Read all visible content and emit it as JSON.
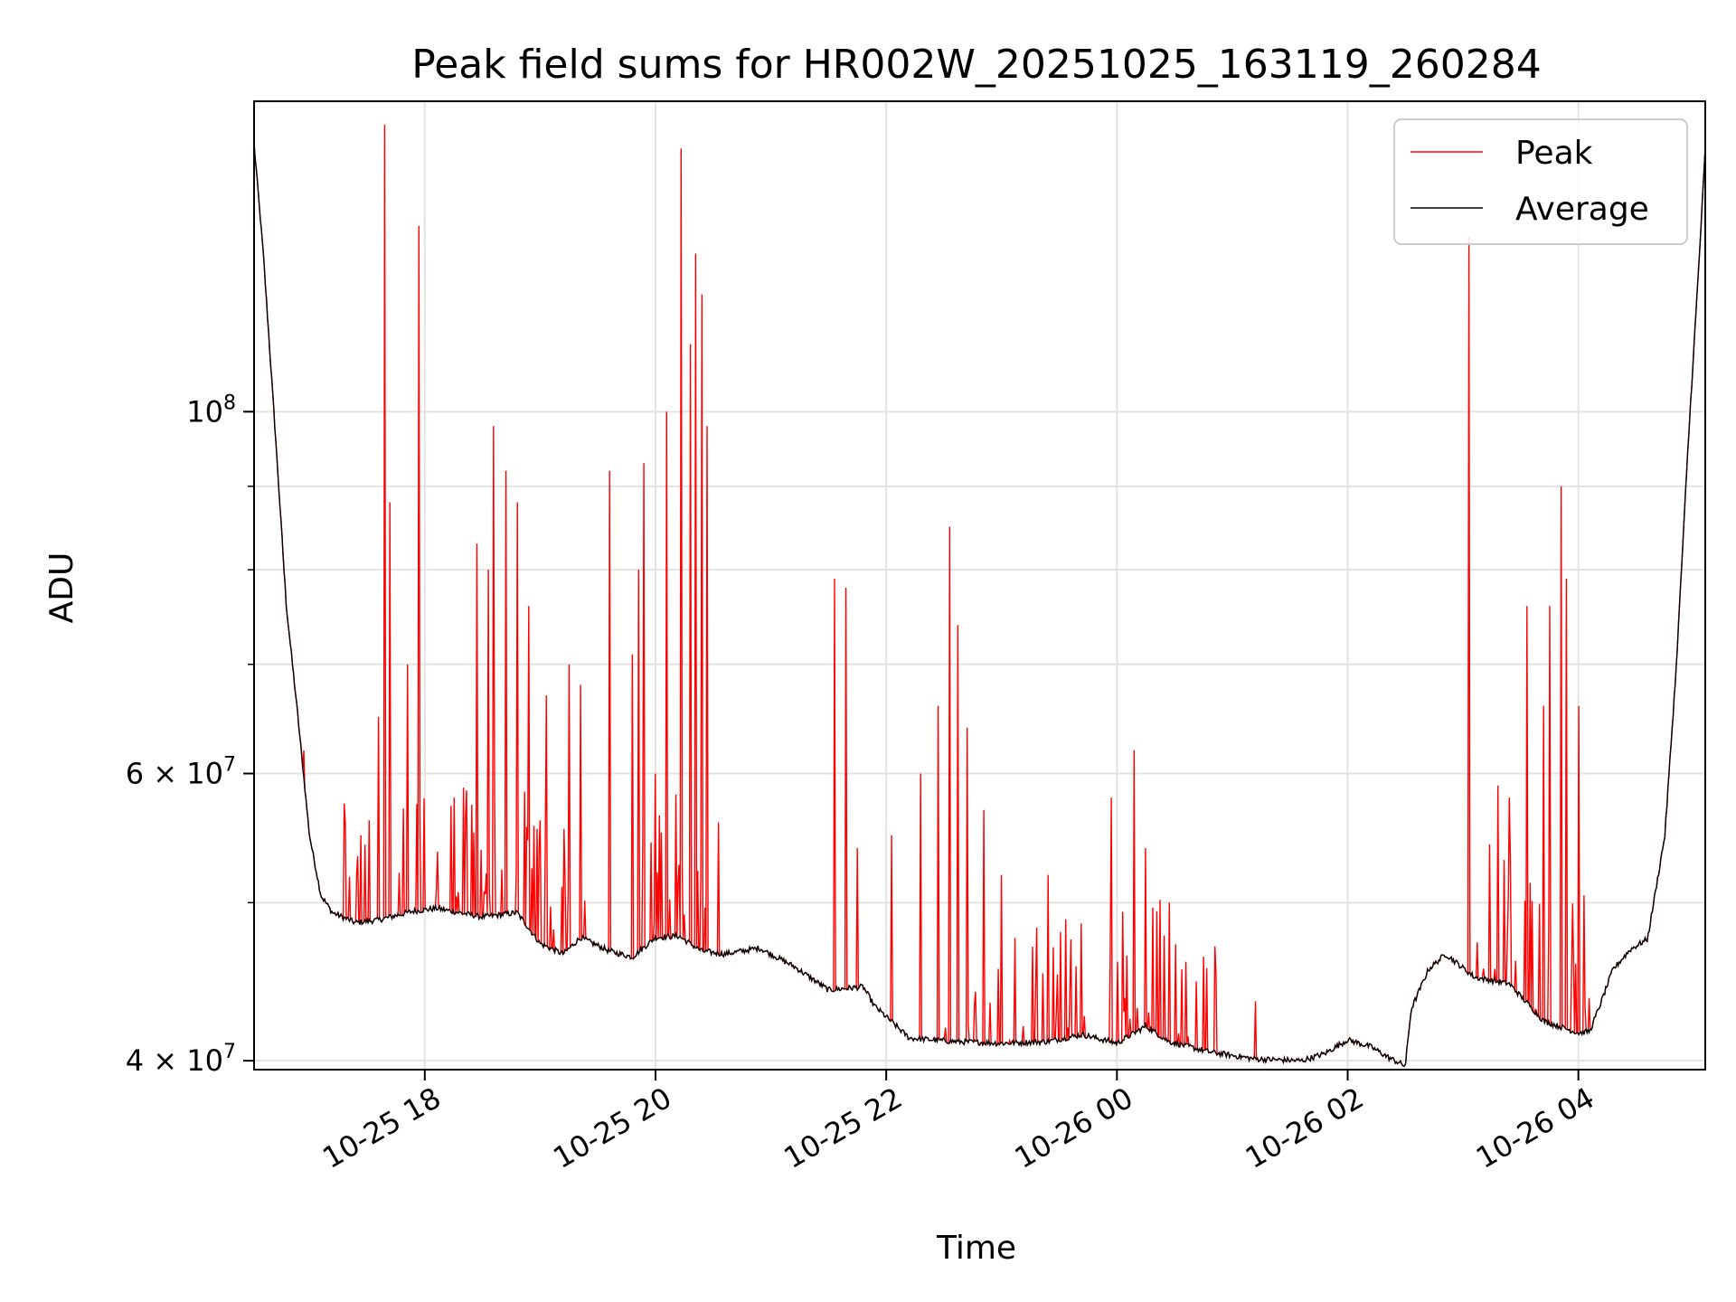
{
  "chart_data": {
    "type": "line",
    "title": "Peak field sums for HR002W_20251025_163119_260284",
    "xlabel": "Time",
    "ylabel": "ADU",
    "yscale": "log",
    "ylim": [
      39500000,
      155000000
    ],
    "xlim_hours": [
      16.52,
      5.1
    ],
    "grid": true,
    "legend_position": "top-right",
    "x_ticks": [
      {
        "hour": 18,
        "label": "10-25 18"
      },
      {
        "hour": 20,
        "label": "10-25 20"
      },
      {
        "hour": 22,
        "label": "10-25 22"
      },
      {
        "hour": 24,
        "label": "10-26 00"
      },
      {
        "hour": 26,
        "label": "10-26 02"
      },
      {
        "hour": 28,
        "label": "10-26 04"
      }
    ],
    "y_ticks": [
      {
        "value": 100000000,
        "base": "10",
        "exp": "8"
      },
      {
        "value": 60000000,
        "base": "6 × 10",
        "exp": "7"
      },
      {
        "value": 40000000,
        "base": "4 × 10",
        "exp": "7"
      }
    ],
    "y_minor_ticks": [
      50000000,
      70000000,
      80000000,
      90000000
    ],
    "series": [
      {
        "name": "Peak",
        "color": "#ff0000"
      },
      {
        "name": "Average",
        "color": "#000000"
      }
    ],
    "average_baseline": [
      [
        16.52,
        146000000
      ],
      [
        16.6,
        125000000
      ],
      [
        16.7,
        98000000
      ],
      [
        16.8,
        76000000
      ],
      [
        16.9,
        65000000
      ],
      [
        17.0,
        55000000
      ],
      [
        17.1,
        50500000
      ],
      [
        17.2,
        49300000
      ],
      [
        17.4,
        48600000
      ],
      [
        17.6,
        48800000
      ],
      [
        17.9,
        49400000
      ],
      [
        18.1,
        49600000
      ],
      [
        18.5,
        49000000
      ],
      [
        18.8,
        49300000
      ],
      [
        19.0,
        47200000
      ],
      [
        19.2,
        46500000
      ],
      [
        19.35,
        47600000
      ],
      [
        19.6,
        46700000
      ],
      [
        19.8,
        46300000
      ],
      [
        20.0,
        47600000
      ],
      [
        20.2,
        47700000
      ],
      [
        20.4,
        46700000
      ],
      [
        20.6,
        46500000
      ],
      [
        20.9,
        46900000
      ],
      [
        21.2,
        45700000
      ],
      [
        21.5,
        44200000
      ],
      [
        21.8,
        44400000
      ],
      [
        21.9,
        43200000
      ],
      [
        22.2,
        41300000
      ],
      [
        22.6,
        41100000
      ],
      [
        23.0,
        41000000
      ],
      [
        23.4,
        41100000
      ],
      [
        23.7,
        41500000
      ],
      [
        24.0,
        41000000
      ],
      [
        24.25,
        42000000
      ],
      [
        24.45,
        41100000
      ],
      [
        24.8,
        40500000
      ],
      [
        25.2,
        40100000
      ],
      [
        25.6,
        40000000
      ],
      [
        25.8,
        40400000
      ],
      [
        26.0,
        41200000
      ],
      [
        26.2,
        40800000
      ],
      [
        26.35,
        40200000
      ],
      [
        26.5,
        39700000
      ],
      [
        26.55,
        43000000
      ],
      [
        26.7,
        45500000
      ],
      [
        26.85,
        46500000
      ],
      [
        27.1,
        45000000
      ],
      [
        27.4,
        44600000
      ],
      [
        27.7,
        42300000
      ],
      [
        28.0,
        41600000
      ],
      [
        28.1,
        41700000
      ],
      [
        28.2,
        43500000
      ],
      [
        28.3,
        45500000
      ],
      [
        28.45,
        46800000
      ],
      [
        28.6,
        47500000
      ],
      [
        28.75,
        55000000
      ],
      [
        28.85,
        70000000
      ],
      [
        28.95,
        95000000
      ],
      [
        29.05,
        125000000
      ],
      [
        29.1,
        145000000
      ]
    ],
    "peak_spikes": [
      [
        16.95,
        62000000
      ],
      [
        17.3,
        57500000
      ],
      [
        17.45,
        55000000
      ],
      [
        17.6,
        65000000
      ],
      [
        17.65,
        150000000
      ],
      [
        17.7,
        88000000
      ],
      [
        17.85,
        70000000
      ],
      [
        17.95,
        130000000
      ],
      [
        18.25,
        58000000
      ],
      [
        18.45,
        83000000
      ],
      [
        18.55,
        80000000
      ],
      [
        18.6,
        98000000
      ],
      [
        18.7,
        92000000
      ],
      [
        18.8,
        88000000
      ],
      [
        18.9,
        76000000
      ],
      [
        19.05,
        67000000
      ],
      [
        19.25,
        70000000
      ],
      [
        19.35,
        68000000
      ],
      [
        19.6,
        92000000
      ],
      [
        19.8,
        71000000
      ],
      [
        19.85,
        80000000
      ],
      [
        19.9,
        93000000
      ],
      [
        20.0,
        60000000
      ],
      [
        20.1,
        100000000
      ],
      [
        20.22,
        145000000
      ],
      [
        20.3,
        110000000
      ],
      [
        20.35,
        125000000
      ],
      [
        20.4,
        118000000
      ],
      [
        20.45,
        98000000
      ],
      [
        20.55,
        56000000
      ],
      [
        21.55,
        79000000
      ],
      [
        21.65,
        78000000
      ],
      [
        21.75,
        54000000
      ],
      [
        22.05,
        55000000
      ],
      [
        22.3,
        60000000
      ],
      [
        22.45,
        66000000
      ],
      [
        22.55,
        85000000
      ],
      [
        22.62,
        74000000
      ],
      [
        22.7,
        64000000
      ],
      [
        22.85,
        57000000
      ],
      [
        23.0,
        52000000
      ],
      [
        23.4,
        52000000
      ],
      [
        23.95,
        58000000
      ],
      [
        24.15,
        62000000
      ],
      [
        24.25,
        54000000
      ],
      [
        24.45,
        50000000
      ],
      [
        24.6,
        46000000
      ],
      [
        24.85,
        47000000
      ],
      [
        25.2,
        43500000
      ],
      [
        27.05,
        128000000
      ],
      [
        27.3,
        59000000
      ],
      [
        27.4,
        58000000
      ],
      [
        27.55,
        76000000
      ],
      [
        27.7,
        66000000
      ],
      [
        27.75,
        76000000
      ],
      [
        27.85,
        90000000
      ],
      [
        27.9,
        79000000
      ],
      [
        28.0,
        66000000
      ]
    ]
  }
}
